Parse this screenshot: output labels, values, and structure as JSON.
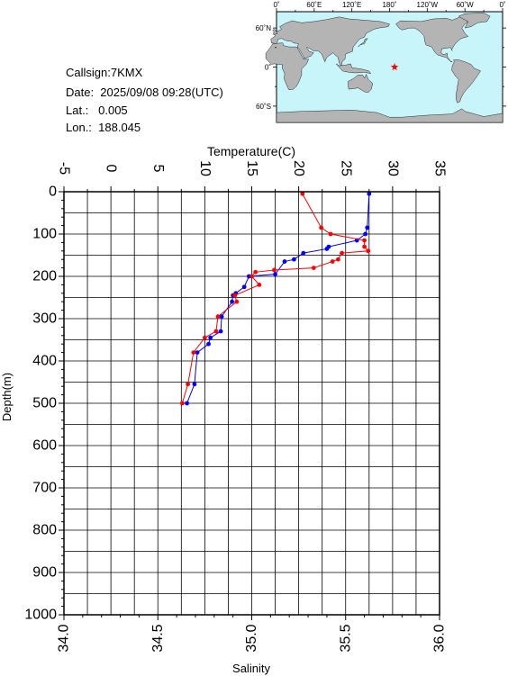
{
  "info": {
    "callsign": "Callsign:7KMX",
    "date": "Date:  2025/09/08 09:28(UTC)",
    "lat": "Lat.:   0.005",
    "lon": "Lon.:  188.045"
  },
  "map": {
    "top_labels": [
      "0˚",
      "60˚E",
      "120˚E",
      "180˚",
      "120˚W",
      "60˚W",
      "0˚"
    ],
    "lat_labels": [
      "60˚N",
      "0˚",
      "60˚S"
    ],
    "ocean_color": "#c8f5fa",
    "land_color": "#b4b4b4",
    "marker": {
      "lon": 188.045,
      "lat": 0.005,
      "symbol": "star",
      "color": "#ff0000"
    }
  },
  "chart_data": {
    "type": "line",
    "title": "",
    "top_axis": {
      "label": "Temperature(C)",
      "range": [
        -5,
        35
      ],
      "ticks": [
        "-5",
        "0",
        "5",
        "10",
        "15",
        "20",
        "25",
        "30",
        "35"
      ]
    },
    "bottom_axis": {
      "label": "Salinity",
      "range": [
        34.0,
        36.0
      ],
      "ticks": [
        "34.0",
        "34.5",
        "35.0",
        "35.5",
        "36.0"
      ]
    },
    "y_axis": {
      "label": "Depth(m)",
      "range": [
        0,
        1000
      ],
      "inverted": true,
      "ticks": [
        "0",
        "100",
        "200",
        "300",
        "400",
        "500",
        "600",
        "700",
        "800",
        "900",
        "1000"
      ]
    },
    "grid": true,
    "series": [
      {
        "color": "#0000ff",
        "axis": "top",
        "depth": [
          5,
          85,
          100,
          115,
          130,
          135,
          145,
          160,
          165,
          195,
          200,
          225,
          240,
          245,
          260,
          295,
          330,
          345,
          360,
          380,
          455,
          500
        ],
        "values": [
          27.5,
          27.3,
          27.1,
          26.2,
          23.2,
          23.0,
          20.5,
          19.5,
          18.5,
          17.5,
          14.7,
          14.2,
          13.3,
          13.0,
          12.9,
          11.8,
          11.7,
          10.6,
          10.4,
          9.2,
          8.9,
          8.1
        ]
      },
      {
        "color": "#ff0000",
        "axis": "bottom",
        "depth": [
          5,
          85,
          100,
          115,
          130,
          140,
          145,
          160,
          165,
          180,
          185,
          190,
          200,
          220,
          245,
          260,
          295,
          330,
          345,
          380,
          455,
          500
        ],
        "values": [
          35.27,
          35.37,
          35.42,
          35.6,
          35.6,
          35.62,
          35.48,
          35.46,
          35.43,
          35.33,
          35.12,
          35.02,
          35.0,
          35.04,
          34.91,
          34.92,
          34.82,
          34.81,
          34.75,
          34.69,
          34.66,
          34.63
        ]
      }
    ]
  }
}
